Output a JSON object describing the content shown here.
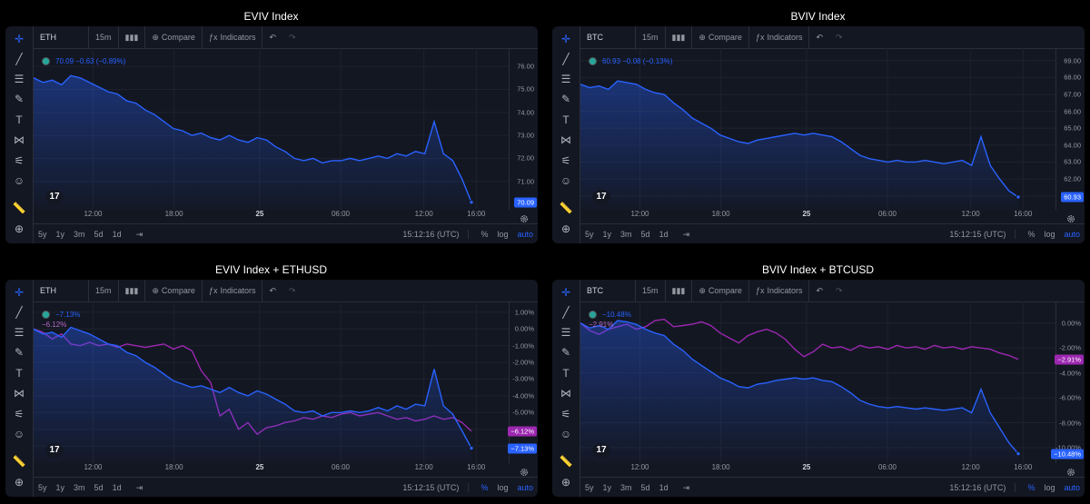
{
  "panels": [
    {
      "title": "EVIV Index",
      "symbol": "ETH",
      "interval": "15m",
      "compare_label": "Compare",
      "indicators_label": "Indicators",
      "legend_text": "70.09 −0.63 (−0.89%)",
      "legend_color": "#2962ff",
      "x_ticks": [
        "12:00",
        "18:00",
        "25",
        "06:00",
        "12:00",
        "16:00"
      ],
      "ranges": [
        "5y",
        "1y",
        "3m",
        "5d",
        "1d"
      ],
      "timestamp": "15:12:16 (UTC)",
      "scale_labels": [
        "%",
        "log",
        "auto"
      ],
      "price_tags": [
        {
          "text": "70.09",
          "color": "#2962ff",
          "value": 70.09
        }
      ]
    },
    {
      "title": "BVIV Index",
      "symbol": "BTC",
      "interval": "15m",
      "compare_label": "Compare",
      "indicators_label": "Indicators",
      "legend_text": "60.93 −0.08 (−0.13%)",
      "legend_color": "#2962ff",
      "x_ticks": [
        "12:00",
        "18:00",
        "25",
        "06:00",
        "12:00",
        "16:00"
      ],
      "ranges": [
        "5y",
        "1y",
        "3m",
        "5d",
        "1d"
      ],
      "timestamp": "15:12:15 (UTC)",
      "scale_labels": [
        "%",
        "log",
        "auto"
      ],
      "price_tags": [
        {
          "text": "60.93",
          "color": "#2962ff",
          "value": 60.93
        }
      ]
    },
    {
      "title": "EVIV Index + ETHUSD",
      "symbol": "ETH",
      "interval": "15m",
      "compare_label": "Compare",
      "indicators_label": "Indicators",
      "legend_text": "−7.13%",
      "legend_color": "#2962ff",
      "series_label": "−6.12%",
      "x_ticks": [
        "12:00",
        "18:00",
        "25",
        "06:00",
        "12:00",
        "16:00"
      ],
      "ranges": [
        "5y",
        "1y",
        "3m",
        "5d",
        "1d"
      ],
      "timestamp": "15:12:15 (UTC)",
      "scale_labels": [
        "%",
        "log",
        "auto"
      ],
      "price_tags": [
        {
          "text": "−6.12%",
          "color": "#9c27b0",
          "value": -6.12
        },
        {
          "text": "−7.13%",
          "color": "#2962ff",
          "value": -7.13
        }
      ]
    },
    {
      "title": "BVIV Index + BTCUSD",
      "symbol": "BTC",
      "interval": "15m",
      "compare_label": "Compare",
      "indicators_label": "Indicators",
      "legend_text": "−10.48%",
      "legend_color": "#2962ff",
      "series_label": "−2.91%",
      "x_ticks": [
        "12:00",
        "18:00",
        "25",
        "06:00",
        "12:00",
        "16:00"
      ],
      "ranges": [
        "5y",
        "1y",
        "3m",
        "5d",
        "1d"
      ],
      "timestamp": "15:12:16 (UTC)",
      "scale_labels": [
        "%",
        "log",
        "auto"
      ],
      "price_tags": [
        {
          "text": "−2.91%",
          "color": "#9c27b0",
          "value": -2.91
        },
        {
          "text": "−10.48%",
          "color": "#2962ff",
          "value": -10.48
        }
      ]
    }
  ],
  "chart_data": [
    {
      "type": "area",
      "title": "EVIV Index",
      "x_ticks": [
        "12:00",
        "18:00",
        "25",
        "06:00",
        "12:00",
        "16:00"
      ],
      "y_ticks": [
        76.0,
        75.0,
        74.0,
        73.0,
        72.0,
        71.0
      ],
      "ylim": [
        70.0,
        76.4
      ],
      "series": [
        {
          "color": "#2962ff",
          "values": [
            75.5,
            75.3,
            75.4,
            75.2,
            75.6,
            75.5,
            75.3,
            75.1,
            74.9,
            74.8,
            74.5,
            74.4,
            74.1,
            73.9,
            73.6,
            73.3,
            73.2,
            73.0,
            73.1,
            72.9,
            72.8,
            73.0,
            72.8,
            72.7,
            72.9,
            72.8,
            72.5,
            72.3,
            72.0,
            71.9,
            72.0,
            71.8,
            71.9,
            71.9,
            72.0,
            71.9,
            72.0,
            72.1,
            72.0,
            72.2,
            72.1,
            72.3,
            72.2,
            73.6,
            72.2,
            71.9,
            71.1,
            70.09
          ]
        }
      ]
    },
    {
      "type": "area",
      "title": "BVIV Index",
      "x_ticks": [
        "12:00",
        "18:00",
        "25",
        "06:00",
        "12:00",
        "16:00"
      ],
      "y_ticks": [
        69.0,
        68.0,
        67.0,
        66.0,
        65.0,
        64.0,
        63.0,
        62.0,
        61.0
      ],
      "ylim": [
        60.5,
        69.2
      ],
      "series": [
        {
          "color": "#2962ff",
          "values": [
            67.6,
            67.4,
            67.5,
            67.3,
            67.8,
            67.7,
            67.6,
            67.3,
            67.1,
            67.0,
            66.5,
            66.1,
            65.6,
            65.3,
            65.0,
            64.6,
            64.4,
            64.2,
            64.1,
            64.3,
            64.4,
            64.5,
            64.6,
            64.7,
            64.6,
            64.7,
            64.6,
            64.5,
            64.2,
            63.8,
            63.4,
            63.2,
            63.1,
            63.0,
            63.1,
            63.0,
            63.0,
            63.1,
            63.0,
            62.9,
            63.0,
            63.1,
            62.8,
            64.5,
            62.8,
            62.0,
            61.3,
            60.93
          ]
        }
      ]
    },
    {
      "type": "line",
      "title": "EVIV Index + ETHUSD",
      "x_ticks": [
        "12:00",
        "18:00",
        "25",
        "06:00",
        "12:00",
        "16:00"
      ],
      "y_ticks": [
        1.0,
        0.0,
        -1.0,
        -2.0,
        -3.0,
        -4.0,
        -5.0,
        -6.0,
        -7.0
      ],
      "ylim": [
        -7.7,
        1.1
      ],
      "series": [
        {
          "color": "#2962ff",
          "values": [
            0.0,
            -0.3,
            -0.2,
            -0.5,
            0.1,
            -0.1,
            -0.3,
            -0.6,
            -0.9,
            -1.0,
            -1.4,
            -1.6,
            -2.0,
            -2.3,
            -2.7,
            -3.1,
            -3.3,
            -3.5,
            -3.4,
            -3.6,
            -3.8,
            -3.5,
            -3.8,
            -4.0,
            -3.7,
            -3.9,
            -4.2,
            -4.5,
            -4.9,
            -5.0,
            -4.9,
            -5.2,
            -5.0,
            -5.0,
            -4.9,
            -5.0,
            -4.9,
            -4.7,
            -4.9,
            -4.6,
            -4.8,
            -4.5,
            -4.6,
            -2.4,
            -4.6,
            -5.1,
            -6.1,
            -7.13
          ]
        },
        {
          "color": "#9c27b0",
          "values": [
            0.0,
            -0.2,
            -0.6,
            -0.3,
            -0.9,
            -1.0,
            -0.8,
            -1.0,
            -0.9,
            -1.1,
            -0.9,
            -1.0,
            -1.1,
            -1.0,
            -0.9,
            -1.2,
            -1.0,
            -1.3,
            -2.5,
            -3.2,
            -5.2,
            -4.8,
            -6.0,
            -5.6,
            -6.3,
            -5.9,
            -5.8,
            -5.6,
            -5.5,
            -5.3,
            -5.4,
            -5.2,
            -5.3,
            -5.1,
            -5.0,
            -5.2,
            -5.1,
            -5.0,
            -5.2,
            -5.4,
            -5.3,
            -5.5,
            -5.4,
            -5.2,
            -5.4,
            -5.3,
            -5.6,
            -6.12
          ]
        }
      ]
    },
    {
      "type": "line",
      "title": "BVIV Index + BTCUSD",
      "x_ticks": [
        "12:00",
        "18:00",
        "25",
        "06:00",
        "12:00",
        "16:00"
      ],
      "y_ticks": [
        0.0,
        -2.0,
        -4.0,
        -6.0,
        -8.0,
        -10.0
      ],
      "ylim": [
        -10.8,
        1.0
      ],
      "series": [
        {
          "color": "#2962ff",
          "values": [
            0.0,
            -0.4,
            -0.2,
            -0.5,
            0.2,
            0.1,
            -0.1,
            -0.5,
            -0.8,
            -1.0,
            -1.7,
            -2.2,
            -2.9,
            -3.4,
            -3.9,
            -4.4,
            -4.7,
            -5.1,
            -5.2,
            -4.9,
            -4.8,
            -4.6,
            -4.5,
            -4.4,
            -4.5,
            -4.4,
            -4.6,
            -4.7,
            -5.1,
            -5.6,
            -6.2,
            -6.5,
            -6.7,
            -6.8,
            -6.7,
            -6.8,
            -6.9,
            -6.8,
            -6.9,
            -7.0,
            -6.9,
            -6.8,
            -7.2,
            -5.3,
            -7.2,
            -8.4,
            -9.6,
            -10.48
          ]
        },
        {
          "color": "#9c27b0",
          "values": [
            0.0,
            -0.6,
            -0.9,
            -0.5,
            -0.3,
            -0.1,
            -0.5,
            -0.3,
            0.2,
            0.3,
            -0.3,
            -0.2,
            -0.1,
            0.1,
            -0.2,
            -0.8,
            -1.2,
            -1.6,
            -1.0,
            -0.7,
            -0.5,
            -0.8,
            -1.3,
            -2.1,
            -2.7,
            -2.3,
            -1.7,
            -2.0,
            -1.9,
            -2.2,
            -1.8,
            -2.0,
            -1.9,
            -2.1,
            -1.8,
            -2.0,
            -1.9,
            -2.1,
            -1.8,
            -2.0,
            -1.9,
            -2.1,
            -1.9,
            -2.0,
            -2.1,
            -2.4,
            -2.6,
            -2.91
          ]
        }
      ]
    }
  ]
}
